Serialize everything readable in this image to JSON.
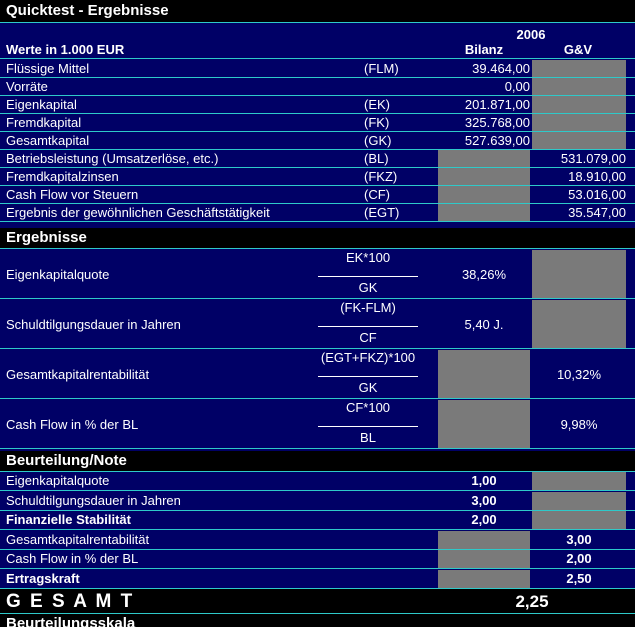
{
  "title": "Quicktest - Ergebnisse",
  "header": {
    "year": "2006",
    "units": "Werte in 1.000 EUR",
    "col_bilanz": "Bilanz",
    "col_guv": "G&V"
  },
  "input_rows": [
    {
      "label": "Flüssige Mittel",
      "abbr": "(FLM)",
      "bilanz": "39.464,00",
      "guv": ""
    },
    {
      "label": "Vorräte",
      "abbr": "",
      "bilanz": "0,00",
      "guv": ""
    },
    {
      "label": "Eigenkapital",
      "abbr": "(EK)",
      "bilanz": "201.871,00",
      "guv": ""
    },
    {
      "label": "Fremdkapital",
      "abbr": "(FK)",
      "bilanz": "325.768,00",
      "guv": ""
    },
    {
      "label": "Gesamtkapital",
      "abbr": "(GK)",
      "bilanz": "527.639,00",
      "guv": ""
    },
    {
      "label": "Betriebsleistung (Umsatzerlöse, etc.)",
      "abbr": "(BL)",
      "bilanz": "",
      "guv": "531.079,00"
    },
    {
      "label": "Fremdkapitalzinsen",
      "abbr": "(FKZ)",
      "bilanz": "",
      "guv": "18.910,00"
    },
    {
      "label": "Cash Flow vor Steuern",
      "abbr": "(CF)",
      "bilanz": "",
      "guv": "53.016,00"
    },
    {
      "label": "Ergebnis der gewöhnlichen Geschäftstätigkeit",
      "abbr": "(EGT)",
      "bilanz": "",
      "guv": "35.547,00"
    }
  ],
  "ergebnisse": {
    "title": "Ergebnisse",
    "rows": [
      {
        "label": "Eigenkapitalquote",
        "numerator": "EK*100",
        "denominator": "GK",
        "bilanz": "38,26%",
        "guv": ""
      },
      {
        "label": "Schuldtilgungsdauer in Jahren",
        "numerator": "(FK-FLM)",
        "denominator": "CF",
        "bilanz": "5,40 J.",
        "guv": ""
      },
      {
        "label": "Gesamtkapitalrentabilität",
        "numerator": "(EGT+FKZ)*100",
        "denominator": "GK",
        "bilanz": "",
        "guv": "10,32%"
      },
      {
        "label": "Cash Flow in % der BL",
        "numerator": "CF*100",
        "denominator": "BL",
        "bilanz": "",
        "guv": "9,98%"
      }
    ]
  },
  "beurteilung": {
    "title": "Beurteilung/Note",
    "rows": [
      {
        "label": "Eigenkapitalquote",
        "bilanz": "1,00",
        "guv": "",
        "bold": false
      },
      {
        "label": "Schuldtilgungsdauer in Jahren",
        "bilanz": "3,00",
        "guv": "",
        "bold": false
      },
      {
        "label": "Finanzielle Stabilität",
        "bilanz": "2,00",
        "guv": "",
        "bold": true
      },
      {
        "label": "Gesamtkapitalrentabilität",
        "bilanz": "",
        "guv": "3,00",
        "bold": false
      },
      {
        "label": "Cash Flow in % der BL",
        "bilanz": "",
        "guv": "2,00",
        "bold": false
      },
      {
        "label": "Ertragskraft",
        "bilanz": "",
        "guv": "2,50",
        "bold": true
      }
    ]
  },
  "gesamt": {
    "label": "G E S A M T",
    "value": "2,25"
  },
  "footer_title": "Beurteilungsskala",
  "colors": {
    "background": "#000066",
    "band": "#000000",
    "line": "#2ec9c9",
    "cell_gray": "#7a7a7a",
    "text": "#ffffff"
  }
}
